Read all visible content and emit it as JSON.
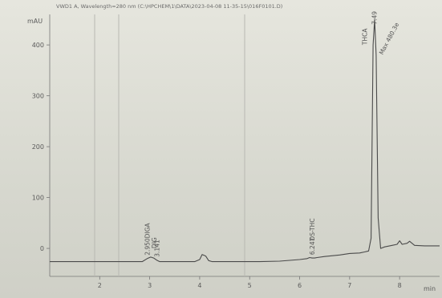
{
  "header": {
    "title": "VWD1 A, Wavelength=280 nm (C:\\HPCHEM\\1\\DATA\\2023-04-08 11-35-15\\016F0101.D)"
  },
  "chart_data": {
    "type": "line",
    "title": "VWD1 A, Wavelength=280 nm (C:\\HPCHEM\\1\\DATA\\2023-04-08 11-35-15\\016F0101.D)",
    "ylabel": "mAU",
    "xlabel": "min",
    "xlim": [
      1.0,
      8.8
    ],
    "ylim": [
      -55,
      460
    ],
    "x_ticks": [
      2,
      3,
      4,
      5,
      6,
      7,
      8
    ],
    "y_ticks": [
      0,
      100,
      200,
      300,
      400
    ],
    "grid": false,
    "series": [
      {
        "x": [
          1.0,
          1.5,
          2.0,
          2.5,
          2.85,
          2.95,
          3.02,
          3.08,
          3.14,
          3.2,
          3.3,
          3.6,
          3.9,
          4.0,
          4.05,
          4.12,
          4.18,
          4.25,
          4.4,
          4.8,
          5.0,
          5.2,
          5.6,
          6.0,
          6.15,
          6.2,
          6.25,
          6.3,
          6.35,
          6.5,
          6.8,
          7.0,
          7.2,
          7.3,
          7.38,
          7.43,
          7.47,
          7.5,
          7.53,
          7.57,
          7.62,
          7.7,
          7.85,
          7.95,
          8.0,
          8.05,
          8.15,
          8.2,
          8.3,
          8.5,
          8.8
        ],
        "y": [
          -26,
          -26,
          -26,
          -26,
          -26,
          -20,
          -17,
          -19,
          -23,
          -26,
          -26,
          -26,
          -26,
          -22,
          -12,
          -15,
          -24,
          -26,
          -26,
          -26,
          -26,
          -26,
          -25,
          -22,
          -20,
          -18,
          -19,
          -19,
          -18,
          -16,
          -13,
          -10,
          -9,
          -7,
          -5,
          20,
          400,
          450,
          380,
          60,
          0,
          3,
          6,
          8,
          15,
          8,
          10,
          14,
          6,
          5,
          5
        ]
      }
    ],
    "peak_labels": [
      {
        "x": 2.95,
        "text": "2.950"
      },
      {
        "x": 3.141,
        "text": "3.141"
      },
      {
        "x": 6.247,
        "text": "6.247"
      },
      {
        "x": 7.49,
        "text": "7.49"
      }
    ],
    "annotations": [
      {
        "x": 3.0,
        "text": "DIGA"
      },
      {
        "x": 3.1,
        "text": "DIG"
      },
      {
        "x": 6.3,
        "text": "DS-THC"
      },
      {
        "x": 7.35,
        "text": "THCA"
      },
      {
        "x": 7.66,
        "text": "Max 480.3e"
      }
    ]
  }
}
